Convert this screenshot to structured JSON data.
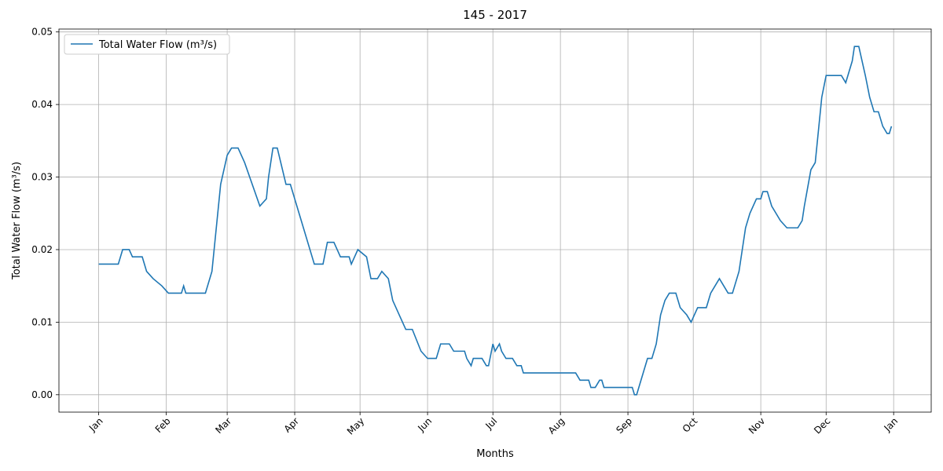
{
  "chart_data": {
    "type": "line",
    "title": "145 - 2017",
    "x_label": "Months",
    "y_label": "Total Water Flow (m³/s)",
    "x": [
      0,
      9,
      11,
      14,
      15.5,
      20,
      22,
      25,
      29,
      32,
      38,
      39,
      40,
      49,
      52,
      56,
      59,
      61,
      64,
      67,
      74,
      77,
      78,
      80,
      82,
      86,
      88,
      99,
      103,
      105,
      108,
      111,
      115,
      116,
      119,
      123,
      125,
      128,
      130,
      133,
      135,
      138,
      141,
      144,
      148,
      151,
      155,
      157,
      161,
      163,
      168,
      169,
      171,
      172,
      176,
      178,
      179,
      181,
      182,
      184,
      185,
      187,
      190,
      192,
      194,
      195,
      219,
      221,
      225,
      226,
      228,
      230,
      231,
      232,
      245,
      246,
      247,
      252,
      254,
      256,
      258,
      260,
      262,
      265,
      267,
      270,
      272,
      275,
      279,
      281,
      283,
      285,
      287,
      289,
      291,
      294,
      297,
      299,
      302,
      304,
      305,
      307,
      309,
      313,
      316,
      321,
      323,
      324,
      327,
      329,
      332,
      334,
      341,
      343,
      346,
      347,
      349,
      352,
      354,
      356,
      358,
      360,
      362,
      363,
      364
    ],
    "series": [
      {
        "name": "Total Water Flow (m³/s)",
        "color": "#1f77b4",
        "values": [
          0.018,
          0.018,
          0.02,
          0.02,
          0.019,
          0.019,
          0.017,
          0.016,
          0.015,
          0.014,
          0.014,
          0.015,
          0.014,
          0.014,
          0.017,
          0.029,
          0.033,
          0.034,
          0.034,
          0.032,
          0.026,
          0.027,
          0.03,
          0.034,
          0.034,
          0.029,
          0.029,
          0.018,
          0.018,
          0.021,
          0.021,
          0.019,
          0.019,
          0.018,
          0.02,
          0.019,
          0.016,
          0.016,
          0.017,
          0.016,
          0.013,
          0.011,
          0.009,
          0.009,
          0.006,
          0.005,
          0.005,
          0.007,
          0.007,
          0.006,
          0.006,
          0.005,
          0.004,
          0.005,
          0.005,
          0.004,
          0.004,
          0.007,
          0.006,
          0.007,
          0.006,
          0.005,
          0.005,
          0.004,
          0.004,
          0.003,
          0.003,
          0.002,
          0.002,
          0.001,
          0.001,
          0.002,
          0.002,
          0.001,
          0.001,
          0.0,
          0.0,
          0.005,
          0.005,
          0.007,
          0.011,
          0.013,
          0.014,
          0.014,
          0.012,
          0.011,
          0.01,
          0.012,
          0.012,
          0.014,
          0.015,
          0.016,
          0.015,
          0.014,
          0.014,
          0.017,
          0.023,
          0.025,
          0.027,
          0.027,
          0.028,
          0.028,
          0.026,
          0.024,
          0.023,
          0.023,
          0.024,
          0.026,
          0.031,
          0.032,
          0.041,
          0.044,
          0.044,
          0.043,
          0.046,
          0.048,
          0.048,
          0.044,
          0.041,
          0.039,
          0.039,
          0.037,
          0.036,
          0.036,
          0.037
        ]
      }
    ],
    "xlim": [
      -18.25,
      382.25
    ],
    "xticks": [
      {
        "value": 0,
        "label": "Jan"
      },
      {
        "value": 31,
        "label": "Feb"
      },
      {
        "value": 59,
        "label": "Mar"
      },
      {
        "value": 90,
        "label": "Apr"
      },
      {
        "value": 120,
        "label": "May"
      },
      {
        "value": 151,
        "label": "Jun"
      },
      {
        "value": 181,
        "label": "Jul"
      },
      {
        "value": 212,
        "label": "Aug"
      },
      {
        "value": 243,
        "label": "Sep"
      },
      {
        "value": 273,
        "label": "Oct"
      },
      {
        "value": 304,
        "label": "Nov"
      },
      {
        "value": 334,
        "label": "Dec"
      },
      {
        "value": 365,
        "label": "Jan"
      }
    ],
    "ylim": [
      -0.0024,
      0.0504
    ],
    "yticks": [
      {
        "value": 0,
        "label": "0.00"
      },
      {
        "value": 0.01,
        "label": "0.01"
      },
      {
        "value": 0.02,
        "label": "0.02"
      },
      {
        "value": 0.03,
        "label": "0.03"
      },
      {
        "value": 0.04,
        "label": "0.04"
      },
      {
        "value": 0.05,
        "label": "0.05"
      }
    ],
    "grid": true,
    "legend": "upper left"
  }
}
